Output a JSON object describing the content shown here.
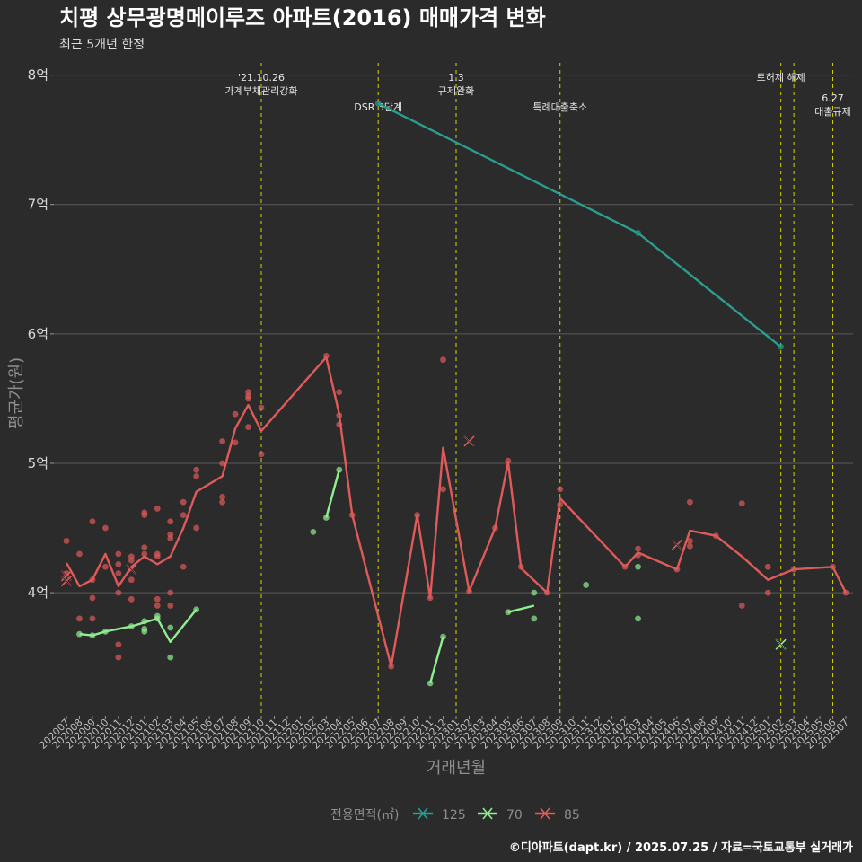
{
  "chart_data": {
    "type": "line",
    "title": "치평 상무광명메이루즈 아파트(2016) 매매가격 변화",
    "subtitle": "최근 5개년 한정",
    "xlabel": "거래년월",
    "ylabel": "평균가(원)",
    "caption": "©디아파트(dapt.kr) / 2025.07.25 / 자료=국토교통부 실거래가",
    "categories": [
      "202007",
      "202008",
      "202009",
      "202010",
      "202011",
      "202012",
      "202101",
      "202102",
      "202103",
      "202104",
      "202105",
      "202106",
      "202107",
      "202108",
      "202109",
      "202110",
      "202111",
      "202112",
      "202201",
      "202202",
      "202203",
      "202204",
      "202205",
      "202206",
      "202207",
      "202208",
      "202209",
      "202210",
      "202211",
      "202212",
      "202301",
      "202302",
      "202303",
      "202304",
      "202305",
      "202306",
      "202307",
      "202308",
      "202309",
      "202310",
      "202311",
      "202312",
      "202401",
      "202402",
      "202403",
      "202404",
      "202405",
      "202406",
      "202407",
      "202408",
      "202409",
      "202410",
      "202411",
      "202412",
      "202501",
      "202502",
      "202503",
      "202504",
      "202505",
      "202506",
      "202507"
    ],
    "yticks": [
      {
        "value": 4.0,
        "label": "4억"
      },
      {
        "value": 5.0,
        "label": "5억"
      },
      {
        "value": 6.0,
        "label": "6억"
      },
      {
        "value": 7.0,
        "label": "7억"
      },
      {
        "value": 8.0,
        "label": "8억"
      }
    ],
    "ylim": [
      3.05,
      8.15
    ],
    "grid": true,
    "legend": {
      "title": "전용면적(㎡)",
      "position": "bottom"
    },
    "series": [
      {
        "name": "125",
        "color": "#2a9d8f",
        "line": [
          [
            "202207",
            7.78
          ],
          [
            "202403",
            6.78
          ],
          [
            "202502",
            5.9
          ]
        ],
        "points": [
          [
            "202207",
            7.78
          ],
          [
            "202403",
            6.78
          ],
          [
            "202502",
            5.9
          ]
        ],
        "cancelled": []
      },
      {
        "name": "70",
        "color": "#90ee90",
        "line_segments": [
          [
            [
              "202008",
              3.68
            ],
            [
              "202009",
              3.67
            ],
            [
              "202010",
              3.7
            ],
            [
              "202012",
              3.74
            ],
            [
              "202102",
              3.8
            ],
            [
              "202103",
              3.62
            ],
            [
              "202105",
              3.87
            ]
          ],
          [
            [
              "202203",
              4.58
            ],
            [
              "202204",
              4.95
            ]
          ],
          [
            [
              "202211",
              3.3
            ],
            [
              "202212",
              3.66
            ]
          ],
          [
            [
              "202305",
              3.85
            ],
            [
              "202307",
              3.9
            ]
          ]
        ],
        "points": [
          [
            "202008",
            3.68
          ],
          [
            "202009",
            3.67
          ],
          [
            "202010",
            3.7
          ],
          [
            "202012",
            3.74
          ],
          [
            "202101",
            3.7
          ],
          [
            "202101",
            3.72
          ],
          [
            "202101",
            3.78
          ],
          [
            "202102",
            3.8
          ],
          [
            "202102",
            3.82
          ],
          [
            "202103",
            3.73
          ],
          [
            "202103",
            3.5
          ],
          [
            "202105",
            3.87
          ],
          [
            "202202",
            4.47
          ],
          [
            "202203",
            4.58
          ],
          [
            "202204",
            4.95
          ],
          [
            "202211",
            3.3
          ],
          [
            "202212",
            3.66
          ],
          [
            "202305",
            3.85
          ],
          [
            "202307",
            4.0
          ],
          [
            "202307",
            3.8
          ],
          [
            "202311",
            4.06
          ],
          [
            "202403",
            4.2
          ],
          [
            "202403",
            3.8
          ]
        ],
        "cancelled": [
          [
            "202502",
            3.6
          ]
        ]
      },
      {
        "name": "85",
        "color": "#e05a5a",
        "line": [
          [
            "202007",
            4.23
          ],
          [
            "202008",
            4.05
          ],
          [
            "202009",
            4.1
          ],
          [
            "202010",
            4.3
          ],
          [
            "202011",
            4.05
          ],
          [
            "202012",
            4.2
          ],
          [
            "202101",
            4.28
          ],
          [
            "202102",
            4.22
          ],
          [
            "202103",
            4.28
          ],
          [
            "202104",
            4.5
          ],
          [
            "202105",
            4.78
          ],
          [
            "202107",
            4.9
          ],
          [
            "202108",
            5.27
          ],
          [
            "202109",
            5.45
          ],
          [
            "202110",
            5.25
          ],
          [
            "202203",
            5.82
          ],
          [
            "202204",
            5.38
          ],
          [
            "202205",
            4.6
          ],
          [
            "202208",
            3.43
          ],
          [
            "202210",
            4.6
          ],
          [
            "202211",
            3.96
          ],
          [
            "202212",
            5.12
          ],
          [
            "202302",
            4.01
          ],
          [
            "202304",
            4.5
          ],
          [
            "202305",
            5.01
          ],
          [
            "202306",
            4.19
          ],
          [
            "202308",
            4.0
          ],
          [
            "202309",
            4.73
          ],
          [
            "202402",
            4.2
          ],
          [
            "202403",
            4.31
          ],
          [
            "202406",
            4.18
          ],
          [
            "202407",
            4.48
          ],
          [
            "202409",
            4.44
          ],
          [
            "202411",
            4.28
          ],
          [
            "202501",
            4.1
          ],
          [
            "202503",
            4.18
          ],
          [
            "202506",
            4.2
          ],
          [
            "202507",
            4.0
          ]
        ],
        "points": [
          [
            "202007",
            4.4
          ],
          [
            "202007",
            4.15
          ],
          [
            "202008",
            4.3
          ],
          [
            "202008",
            3.8
          ],
          [
            "202009",
            4.55
          ],
          [
            "202009",
            3.96
          ],
          [
            "202009",
            3.8
          ],
          [
            "202009",
            4.1
          ],
          [
            "202010",
            4.5
          ],
          [
            "202010",
            4.2
          ],
          [
            "202011",
            4.3
          ],
          [
            "202011",
            4.22
          ],
          [
            "202011",
            4.15
          ],
          [
            "202011",
            4.0
          ],
          [
            "202011",
            3.6
          ],
          [
            "202011",
            3.5
          ],
          [
            "202012",
            4.28
          ],
          [
            "202012",
            4.25
          ],
          [
            "202012",
            4.1
          ],
          [
            "202012",
            3.95
          ],
          [
            "202101",
            4.62
          ],
          [
            "202101",
            4.6
          ],
          [
            "202101",
            4.35
          ],
          [
            "202101",
            4.3
          ],
          [
            "202102",
            4.65
          ],
          [
            "202102",
            4.3
          ],
          [
            "202102",
            4.28
          ],
          [
            "202102",
            3.95
          ],
          [
            "202102",
            3.9
          ],
          [
            "202103",
            4.55
          ],
          [
            "202103",
            4.45
          ],
          [
            "202103",
            4.42
          ],
          [
            "202103",
            4.0
          ],
          [
            "202103",
            3.9
          ],
          [
            "202104",
            4.7
          ],
          [
            "202104",
            4.6
          ],
          [
            "202104",
            4.2
          ],
          [
            "202105",
            4.95
          ],
          [
            "202105",
            4.9
          ],
          [
            "202105",
            4.5
          ],
          [
            "202107",
            5.17
          ],
          [
            "202107",
            5.0
          ],
          [
            "202107",
            4.74
          ],
          [
            "202107",
            4.7
          ],
          [
            "202108",
            5.38
          ],
          [
            "202108",
            5.16
          ],
          [
            "202109",
            5.55
          ],
          [
            "202109",
            5.52
          ],
          [
            "202109",
            5.5
          ],
          [
            "202109",
            5.28
          ],
          [
            "202110",
            5.43
          ],
          [
            "202110",
            5.07
          ],
          [
            "202203",
            5.83
          ],
          [
            "202204",
            5.55
          ],
          [
            "202204",
            5.37
          ],
          [
            "202204",
            5.3
          ],
          [
            "202205",
            4.6
          ],
          [
            "202208",
            3.43
          ],
          [
            "202210",
            4.6
          ],
          [
            "202211",
            3.96
          ],
          [
            "202212",
            5.8
          ],
          [
            "202212",
            4.8
          ],
          [
            "202302",
            4.01
          ],
          [
            "202304",
            4.5
          ],
          [
            "202305",
            5.02
          ],
          [
            "202306",
            4.2
          ],
          [
            "202308",
            4.0
          ],
          [
            "202309",
            4.8
          ],
          [
            "202309",
            4.68
          ],
          [
            "202402",
            4.2
          ],
          [
            "202403",
            4.34
          ],
          [
            "202403",
            4.29
          ],
          [
            "202406",
            4.18
          ],
          [
            "202407",
            4.7
          ],
          [
            "202407",
            4.4
          ],
          [
            "202407",
            4.36
          ],
          [
            "202409",
            4.44
          ],
          [
            "202411",
            4.69
          ],
          [
            "202411",
            3.9
          ],
          [
            "202501",
            4.2
          ],
          [
            "202501",
            4.0
          ],
          [
            "202503",
            4.18
          ],
          [
            "202506",
            4.2
          ],
          [
            "202507",
            4.0
          ]
        ],
        "cancelled": [
          [
            "202007",
            4.13
          ],
          [
            "202007",
            4.09
          ],
          [
            "202012",
            4.18
          ],
          [
            "202302",
            5.17
          ],
          [
            "202406",
            4.37
          ]
        ]
      }
    ],
    "annotations": [
      {
        "x": "202110",
        "lines": [
          "'21.10.26",
          "가계부채관리강화"
        ],
        "level": 0
      },
      {
        "x": "202207",
        "lines": [
          "DSR 3단계"
        ],
        "level": 1
      },
      {
        "x": "202301",
        "lines": [
          "1.3",
          "규제완화"
        ],
        "level": 0
      },
      {
        "x": "202309",
        "lines": [
          "특례대출축소"
        ],
        "level": 1
      },
      {
        "x": "202502",
        "lines": [
          "토허제 해제"
        ],
        "level": 0
      },
      {
        "x": "202503",
        "lines": [],
        "level": 0
      },
      {
        "x": "202506",
        "lines": [
          "6.27",
          "대출규제"
        ],
        "level": 2
      }
    ]
  }
}
